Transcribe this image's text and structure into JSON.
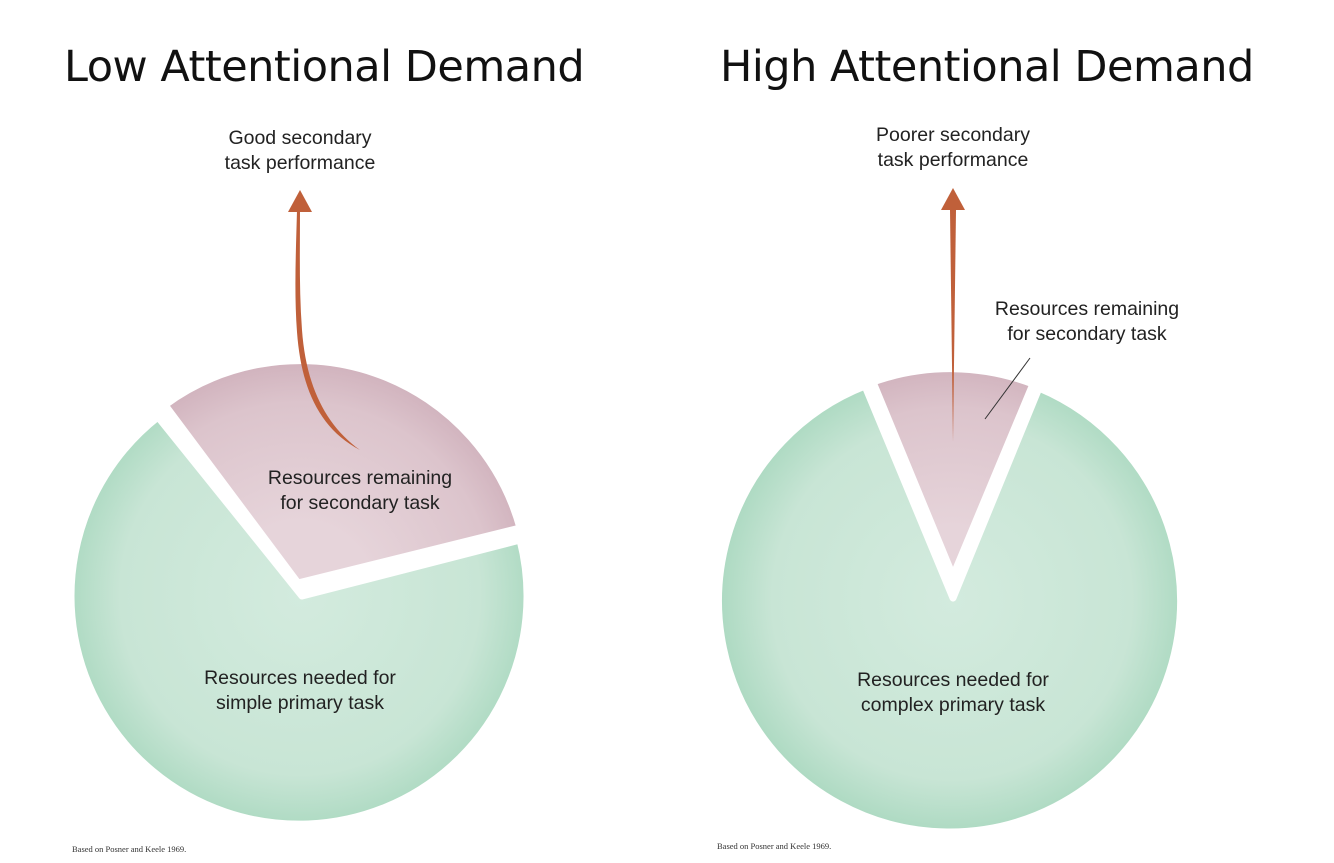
{
  "panels": [
    {
      "title": "Low Attentional Demand",
      "arrow_label": [
        "Good secondary",
        "task performance"
      ],
      "secondary_label": [
        "Resources remaining",
        "for secondary task"
      ],
      "primary_label": [
        "Resources needed for",
        "simple primary task"
      ],
      "citation": "Based on Posner and Keele 1969."
    },
    {
      "title": "High Attentional Demand",
      "arrow_label": [
        "Poorer secondary",
        "task performance"
      ],
      "secondary_label": [
        "Resources remaining",
        "for secondary task"
      ],
      "primary_label": [
        "Resources needed for",
        "complex primary task"
      ],
      "citation": "Based on Posner and Keele 1969."
    }
  ],
  "colors": {
    "primary_fill": "#c9e6d6",
    "primary_edge": "#a9d8bf",
    "secondary_fill": "#dcc4cc",
    "secondary_edge": "#cfb0bb",
    "arrow": "#c0603a",
    "background": "#ffffff"
  }
}
